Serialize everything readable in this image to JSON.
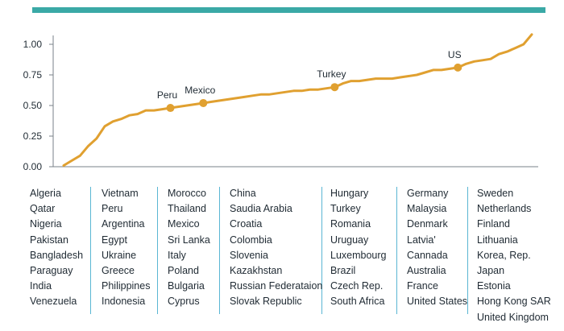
{
  "colors": {
    "accent_bar": "#3aa9a6",
    "line": "#e0a030",
    "axis": "#7a8288",
    "separator": "#5ab6d3"
  },
  "chart_data": {
    "type": "line",
    "title": "",
    "xlabel": "",
    "ylabel": "",
    "ylim": [
      0,
      1.0
    ],
    "yticks": [
      "0.00",
      "0.25",
      "0.50",
      "0.75",
      "1.00"
    ],
    "grid": false,
    "x": [
      1,
      2,
      3,
      4,
      5,
      6,
      7,
      8,
      9,
      10,
      11,
      12,
      13,
      14,
      15,
      16,
      17,
      18,
      19,
      20,
      21,
      22,
      23,
      24,
      25,
      26,
      27,
      28,
      29,
      30,
      31,
      32,
      33,
      34,
      35,
      36,
      37,
      38,
      39,
      40,
      41,
      42,
      43,
      44,
      45,
      46,
      47,
      48,
      49,
      50,
      51,
      52,
      53,
      54,
      55,
      56,
      57,
      58
    ],
    "series": [
      {
        "values": [
          0.01,
          0.05,
          0.09,
          0.17,
          0.23,
          0.33,
          0.37,
          0.39,
          0.42,
          0.43,
          0.46,
          0.46,
          0.47,
          0.48,
          0.49,
          0.5,
          0.51,
          0.52,
          0.53,
          0.54,
          0.55,
          0.56,
          0.57,
          0.58,
          0.59,
          0.59,
          0.6,
          0.61,
          0.62,
          0.62,
          0.63,
          0.63,
          0.64,
          0.65,
          0.68,
          0.7,
          0.7,
          0.71,
          0.72,
          0.72,
          0.72,
          0.73,
          0.74,
          0.75,
          0.77,
          0.79,
          0.79,
          0.8,
          0.81,
          0.84,
          0.86,
          0.87,
          0.88,
          0.92,
          0.94,
          0.97,
          1.0,
          1.08
        ]
      }
    ],
    "highlighted_points": [
      {
        "label": "Peru",
        "x": 14,
        "y": 0.48
      },
      {
        "label": "Mexico",
        "x": 18,
        "y": 0.52
      },
      {
        "label": "Turkey",
        "x": 34,
        "y": 0.65
      },
      {
        "label": "US",
        "x": 49,
        "y": 0.81
      }
    ]
  },
  "country_columns": [
    [
      "Algeria",
      "Qatar",
      "Nigeria",
      "Pakistan",
      "Bangladesh",
      "Paraguay",
      "India",
      "Venezuela"
    ],
    [
      "Vietnam",
      "Peru",
      "Argentina",
      "Egypt",
      "Ukraine",
      "Greece",
      "Philippines",
      "Indonesia"
    ],
    [
      "Morocco",
      "Thailand",
      "Mexico",
      "Sri Lanka",
      "Italy",
      "Poland",
      "Bulgaria",
      "Cyprus"
    ],
    [
      "China",
      "Saudia Arabia",
      "Croatia",
      "Colombia",
      "Slovenia",
      "Kazakhstan",
      "Russian  Federataion",
      "Slovak Republic"
    ],
    [
      "Hungary",
      "Turkey",
      "Romania",
      "Uruguay",
      "Luxembourg",
      "Brazil",
      "Czech Rep.",
      "South Africa"
    ],
    [
      "Germany",
      "Malaysia",
      "Denmark",
      "Latvia'",
      "Cannada",
      "Australia",
      "France",
      "United States"
    ],
    [
      "Sweden",
      "Netherlands",
      "Finland",
      "Lithuania",
      "Korea, Rep.",
      "Japan",
      "Estonia",
      "Hong Kong SAR",
      "United Kingdom"
    ]
  ]
}
